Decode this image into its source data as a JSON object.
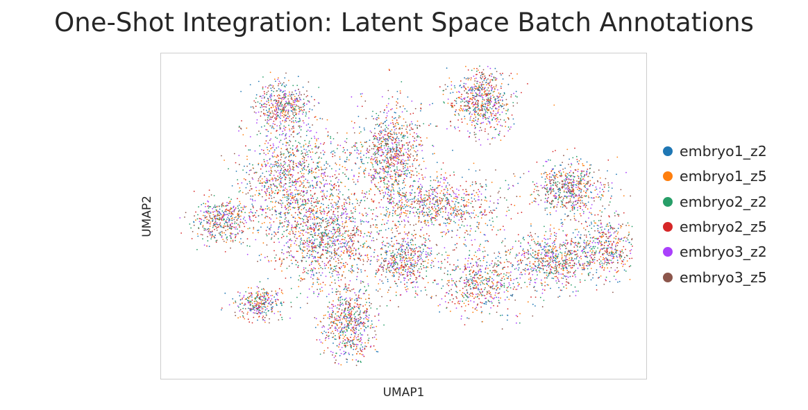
{
  "chart_data": {
    "type": "scatter",
    "title": "One-Shot Integration: Latent Space Batch Annotations",
    "xlabel": "UMAP1",
    "ylabel": "UMAP2",
    "ticks_visible": false,
    "grid": false,
    "legend_position": "right-outside",
    "series": [
      {
        "name": "embryo1_z2",
        "color": "#1f77b4"
      },
      {
        "name": "embryo1_z5",
        "color": "#ff7f0e"
      },
      {
        "name": "embryo2_z2",
        "color": "#279e68"
      },
      {
        "name": "embryo2_z5",
        "color": "#d62728"
      },
      {
        "name": "embryo3_z2",
        "color": "#aa40fc"
      },
      {
        "name": "embryo3_z5",
        "color": "#8c564b"
      }
    ]
  }
}
